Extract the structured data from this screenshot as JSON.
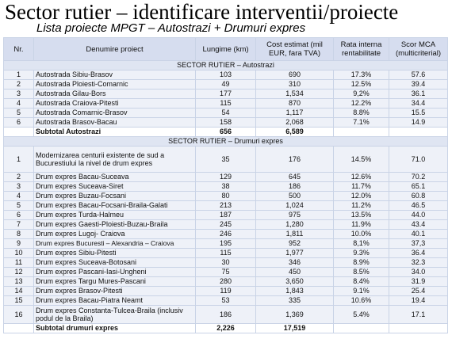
{
  "title": "Sector rutier – identificare interventii/proiecte",
  "subtitle": "Lista proiecte MPGT – Autostrazi + Drumuri expres",
  "headers": {
    "nr": "Nr.",
    "name": "Denumire proiect",
    "length": "Lungime (km)",
    "cost": "Cost estimat (mil EUR, fara TVA)",
    "rate": "Rata interna rentabilitate",
    "score_main": "Scor MCA",
    "score_sub": "(multicriterial)"
  },
  "section_autostrazi": "SECTOR RUTIER – Autostrazi",
  "autostrazi": [
    {
      "nr": "1",
      "name": "Autostrada Sibiu-Brasov",
      "length": "103",
      "cost": "690",
      "rate": "17.3%",
      "score": "57.6"
    },
    {
      "nr": "2",
      "name": "Autostrada Ploiesti-Comarnic",
      "length": "49",
      "cost": "310",
      "rate": "12.5%",
      "score": "39.4"
    },
    {
      "nr": "3",
      "name": "Autostrada Gilau-Bors",
      "length": "177",
      "cost": "1,534",
      "rate": "9,2%",
      "score": "36.1"
    },
    {
      "nr": "4",
      "name": "Autostrada Craiova-Pitesti",
      "length": "115",
      "cost": "870",
      "rate": "12.2%",
      "score": "34.4"
    },
    {
      "nr": "5",
      "name": "Autostrada Comarnic-Brasov",
      "length": "54",
      "cost": "1,117",
      "rate": "8.8%",
      "score": "15.5"
    },
    {
      "nr": "6",
      "name": "Autostrada Brasov-Bacau",
      "length": "158",
      "cost": "2,068",
      "rate": "7.1%",
      "score": "14.9"
    }
  ],
  "subtotal_autostrazi": {
    "label": "Subtotal Autostrazi",
    "length": "656",
    "cost": "6,589"
  },
  "section_drumuri": "SECTOR RUTIER – Drumuri expres",
  "drumuri": [
    {
      "nr": "1",
      "name": "Modernizarea centurii existente de sud a Bucurestiului la nivel de drum expres",
      "length": "35",
      "cost": "176",
      "rate": "14.5%",
      "score": "71.0",
      "tall": "3"
    },
    {
      "nr": "2",
      "name": "Drum expres Bacau-Suceava",
      "length": "129",
      "cost": "645",
      "rate": "12.6%",
      "score": "70.2"
    },
    {
      "nr": "3",
      "name": "Drum expres Suceava-Siret",
      "length": "38",
      "cost": "186",
      "rate": "11.7%",
      "score": "65.1"
    },
    {
      "nr": "4",
      "name": "Drum expres Buzau-Focsani",
      "length": "80",
      "cost": "500",
      "rate": "12.0%",
      "score": "60.8"
    },
    {
      "nr": "5",
      "name": "Drum expres Bacau-Focsani-Braila-Galati",
      "length": "213",
      "cost": "1,024",
      "rate": "11.2%",
      "score": "46.5"
    },
    {
      "nr": "6",
      "name": "Drum expres Turda-Halmeu",
      "length": "187",
      "cost": "975",
      "rate": "13.5%",
      "score": "44.0"
    },
    {
      "nr": "7",
      "name": "Drum expres Gaesti-Ploiesti-Buzau-Braila",
      "length": "245",
      "cost": "1,280",
      "rate": "11.9%",
      "score": "43.4"
    },
    {
      "nr": "8",
      "name": "Drum expres Lugoj- Craiova",
      "length": "246",
      "cost": "1,811",
      "rate": "10.0%",
      "score": "40.1"
    },
    {
      "nr": "9",
      "name": "Drum expres Bucuresti – Alexandria – Craiova",
      "length": "195",
      "cost": "952",
      "rate": "8,1%",
      "score": "37,3",
      "small": "1"
    },
    {
      "nr": "10",
      "name": "Drum expres Sibiu-Pitesti",
      "length": "115",
      "cost": "1,977",
      "rate": "9.3%",
      "score": "36.4"
    },
    {
      "nr": "11",
      "name": "Drum expres Suceava-Botosani",
      "length": "30",
      "cost": "346",
      "rate": "8.9%",
      "score": "32.3"
    },
    {
      "nr": "12",
      "name": "Drum expres Pascani-Iasi-Ungheni",
      "length": "75",
      "cost": "450",
      "rate": "8.5%",
      "score": "34.0"
    },
    {
      "nr": "13",
      "name": "Drum expres Targu Mures-Pascani",
      "length": "280",
      "cost": "3,650",
      "rate": "8.4%",
      "score": "31.9"
    },
    {
      "nr": "14",
      "name": "Drum expres Brasov-Pitesti",
      "length": "119",
      "cost": "1,843",
      "rate": "9.1%",
      "score": "25.4"
    },
    {
      "nr": "15",
      "name": "Drum expres Bacau-Piatra Neamt",
      "length": "53",
      "cost": "335",
      "rate": "10.6%",
      "score": "19.4"
    },
    {
      "nr": "16",
      "name": "Drum expres Constanta-Tulcea-Braila (inclusiv podul de la Braila)",
      "length": "186",
      "cost": "1,369",
      "rate": "5.4%",
      "score": "17.1",
      "tall": "2"
    }
  ],
  "subtotal_drumuri": {
    "label": "Subtotal drumuri expres",
    "length": "2,226",
    "cost": "17,519"
  }
}
